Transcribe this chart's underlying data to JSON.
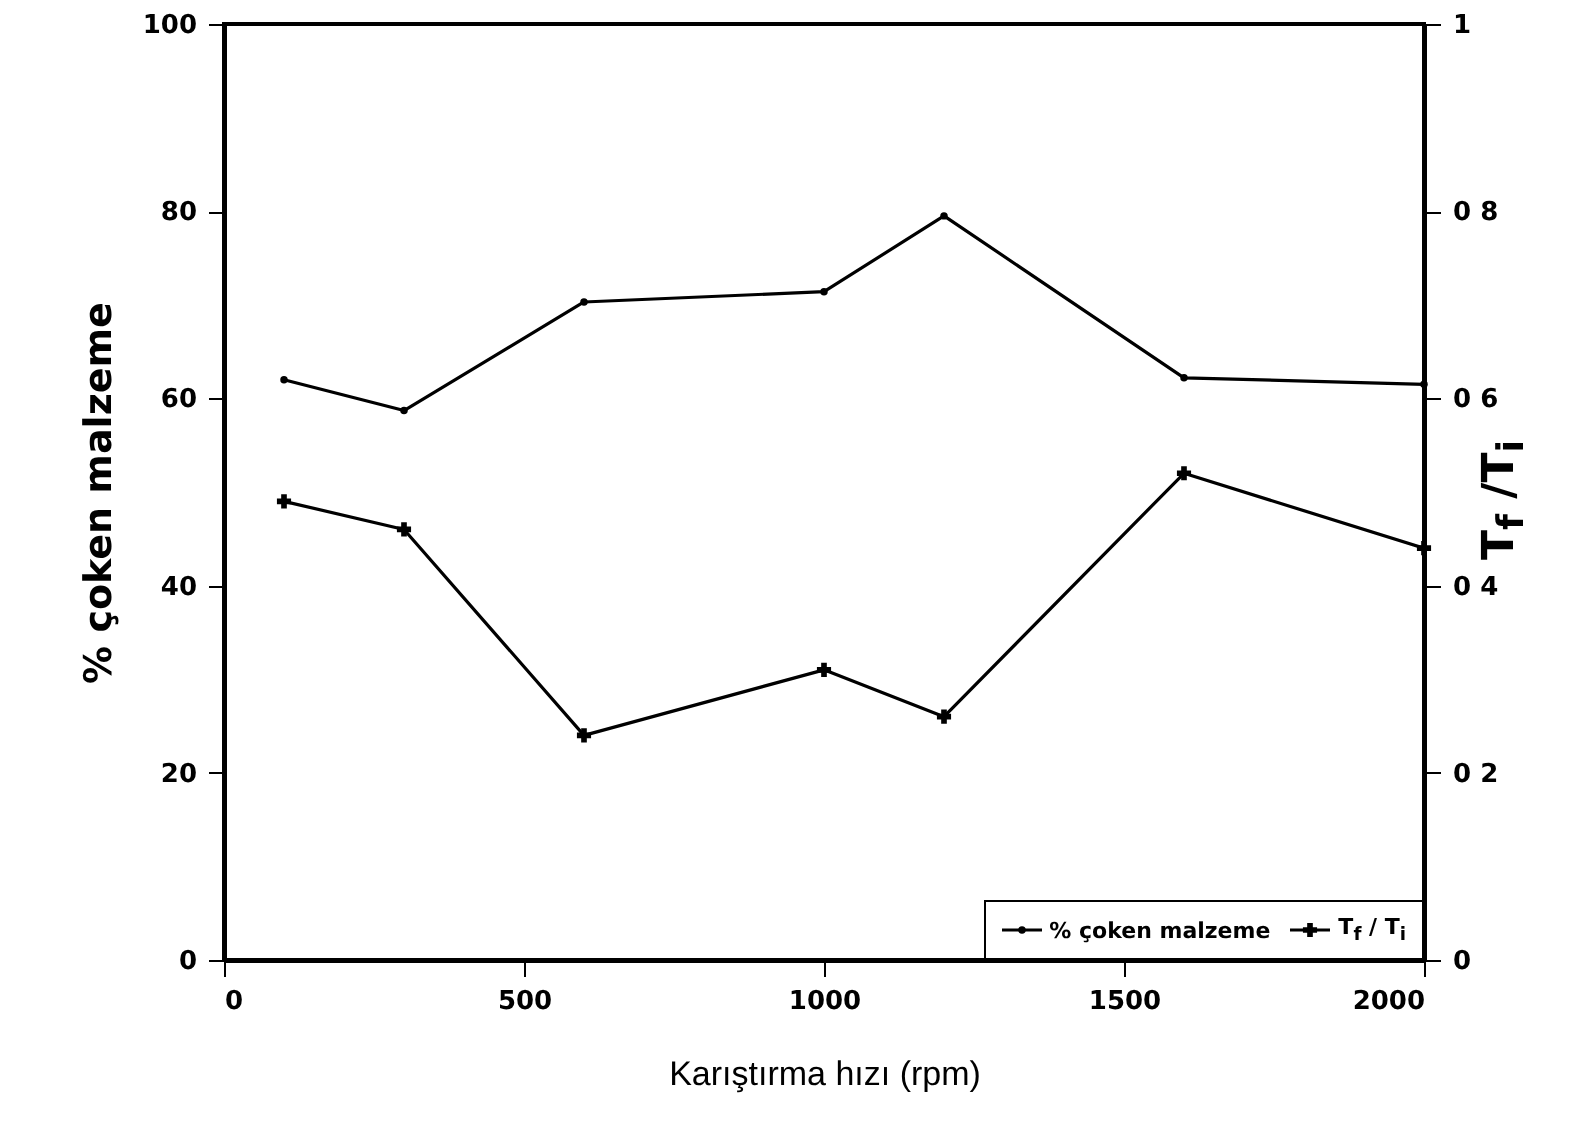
{
  "chart_data": {
    "type": "line",
    "xlabel": "Karıştırma hızı (rpm)",
    "ylabel": "% çoken malzeme",
    "y2label": "T$_{f}$ /T$_{i}$",
    "x": [
      100,
      300,
      600,
      1000,
      1200,
      1600,
      2000
    ],
    "series": [
      {
        "name": "% çoken malzeme",
        "color": "#000000",
        "marker": "circle",
        "values": [
          62,
          58.7,
          70.3,
          71.4,
          79.5,
          62.2,
          61.5
        ]
      },
      {
        "name": "T$_{f}$ / T$_{i}$",
        "color": "#000000",
        "marker": "cross",
        "axis": "y2",
        "values": [
          0.49,
          0.46,
          0.24,
          0.31,
          0.26,
          0.52,
          0.44
        ]
      }
    ],
    "xlim": [
      0,
      2000
    ],
    "xticks": [
      0,
      500,
      1000,
      1500,
      2000
    ],
    "ylim": [
      0,
      100
    ],
    "yticks": [
      0,
      20,
      40,
      60,
      80,
      100
    ],
    "y2lim": [
      0,
      1
    ],
    "y2ticks": [
      0,
      {
        "value": 0.2,
        "label": "0 2"
      },
      {
        "value": 0.4,
        "label": "0 4"
      },
      {
        "value": 0.6,
        "label": "0 6"
      },
      {
        "value": 0.8,
        "label": "0 8"
      },
      1
    ],
    "grid": false,
    "legend": "bottom right",
    "line_style": "solid"
  }
}
